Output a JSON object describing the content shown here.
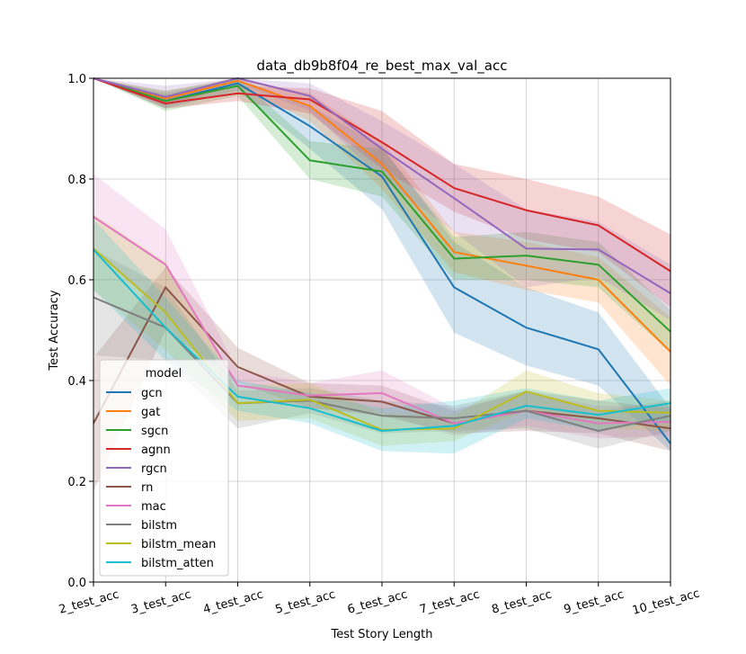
{
  "chart_data": {
    "type": "line",
    "title": "data_db9b8f04_re_best_max_val_acc",
    "xlabel": "Test Story Length",
    "ylabel": "Test Accuracy",
    "categories": [
      "2_test_acc",
      "3_test_acc",
      "4_test_acc",
      "5_test_acc",
      "6_test_acc",
      "7_test_acc",
      "8_test_acc",
      "9_test_acc",
      "10_test_acc"
    ],
    "ylim": [
      0.0,
      1.0
    ],
    "yticks": [
      "0.0",
      "0.2",
      "0.4",
      "0.6",
      "0.8",
      "1.0"
    ],
    "grid": true,
    "legend_title": "model",
    "legend_placement": "lower-left",
    "series": [
      {
        "name": "gcn",
        "color": "#1f77b4",
        "values": [
          1.0,
          0.955,
          0.99,
          0.905,
          0.805,
          0.585,
          0.505,
          0.462,
          0.275
        ],
        "lower": [
          1.0,
          0.94,
          0.975,
          0.86,
          0.74,
          0.495,
          0.43,
          0.39,
          0.26
        ],
        "upper": [
          1.0,
          0.97,
          1.0,
          0.945,
          0.865,
          0.675,
          0.585,
          0.535,
          0.345
        ]
      },
      {
        "name": "gat",
        "color": "#ff7f0e",
        "values": [
          1.0,
          0.96,
          0.995,
          0.945,
          0.83,
          0.655,
          0.628,
          0.6,
          0.457
        ],
        "lower": [
          1.0,
          0.945,
          0.985,
          0.915,
          0.78,
          0.615,
          0.58,
          0.555,
          0.39
        ],
        "upper": [
          1.0,
          0.975,
          1.0,
          0.97,
          0.875,
          0.695,
          0.675,
          0.645,
          0.525
        ]
      },
      {
        "name": "sgcn",
        "color": "#2ca02c",
        "values": [
          1.0,
          0.955,
          0.985,
          0.837,
          0.815,
          0.642,
          0.648,
          0.63,
          0.497
        ],
        "lower": [
          1.0,
          0.935,
          0.965,
          0.8,
          0.765,
          0.6,
          0.6,
          0.585,
          0.455
        ],
        "upper": [
          1.0,
          0.975,
          1.0,
          0.875,
          0.86,
          0.685,
          0.695,
          0.675,
          0.54
        ]
      },
      {
        "name": "agnn",
        "color": "#d62728",
        "values": [
          1.0,
          0.95,
          0.97,
          0.958,
          0.873,
          0.782,
          0.738,
          0.708,
          0.617
        ],
        "lower": [
          1.0,
          0.94,
          0.955,
          0.93,
          0.82,
          0.735,
          0.68,
          0.655,
          0.545
        ],
        "upper": [
          1.0,
          0.965,
          0.985,
          0.98,
          0.935,
          0.83,
          0.8,
          0.765,
          0.69
        ]
      },
      {
        "name": "rgcn",
        "color": "#9467bd",
        "values": [
          1.0,
          0.963,
          1.0,
          0.965,
          0.86,
          0.762,
          0.662,
          0.66,
          0.573
        ],
        "lower": [
          1.0,
          0.945,
          0.99,
          0.935,
          0.8,
          0.695,
          0.585,
          0.605,
          0.52
        ],
        "upper": [
          1.0,
          0.985,
          1.0,
          0.99,
          0.915,
          0.83,
          0.74,
          0.715,
          0.63
        ]
      },
      {
        "name": "rn",
        "color": "#8c564b",
        "values": [
          0.315,
          0.585,
          0.427,
          0.368,
          0.358,
          0.315,
          0.34,
          0.325,
          0.305
        ],
        "lower": [
          0.18,
          0.5,
          0.395,
          0.345,
          0.33,
          0.295,
          0.3,
          0.295,
          0.26
        ],
        "upper": [
          0.445,
          0.625,
          0.465,
          0.395,
          0.39,
          0.34,
          0.38,
          0.36,
          0.345
        ]
      },
      {
        "name": "mac",
        "color": "#e377c2",
        "values": [
          0.725,
          0.63,
          0.39,
          0.37,
          0.375,
          0.315,
          0.34,
          0.315,
          0.318
        ],
        "lower": [
          0.66,
          0.535,
          0.365,
          0.345,
          0.335,
          0.29,
          0.31,
          0.285,
          0.29
        ],
        "upper": [
          0.81,
          0.7,
          0.42,
          0.395,
          0.42,
          0.345,
          0.375,
          0.35,
          0.35
        ]
      },
      {
        "name": "bilstm",
        "color": "#7f7f7f",
        "values": [
          0.565,
          0.505,
          0.355,
          0.36,
          0.33,
          0.325,
          0.34,
          0.3,
          0.33
        ],
        "lower": [
          0.45,
          0.44,
          0.305,
          0.335,
          0.295,
          0.3,
          0.305,
          0.265,
          0.3
        ],
        "upper": [
          0.66,
          0.585,
          0.38,
          0.385,
          0.36,
          0.35,
          0.38,
          0.34,
          0.36
        ]
      },
      {
        "name": "bilstm_mean",
        "color": "#bcbd22",
        "values": [
          0.662,
          0.535,
          0.355,
          0.362,
          0.302,
          0.305,
          0.378,
          0.34,
          0.336
        ],
        "lower": [
          0.58,
          0.46,
          0.32,
          0.325,
          0.27,
          0.28,
          0.34,
          0.305,
          0.3
        ],
        "upper": [
          0.73,
          0.635,
          0.39,
          0.395,
          0.335,
          0.33,
          0.42,
          0.375,
          0.36
        ]
      },
      {
        "name": "bilstm_atten",
        "color": "#17becf",
        "values": [
          0.66,
          0.505,
          0.368,
          0.345,
          0.3,
          0.31,
          0.35,
          0.332,
          0.355
        ],
        "lower": [
          0.58,
          0.44,
          0.34,
          0.315,
          0.26,
          0.255,
          0.325,
          0.3,
          0.32
        ],
        "upper": [
          0.72,
          0.565,
          0.4,
          0.375,
          0.345,
          0.36,
          0.385,
          0.36,
          0.385
        ]
      }
    ]
  }
}
